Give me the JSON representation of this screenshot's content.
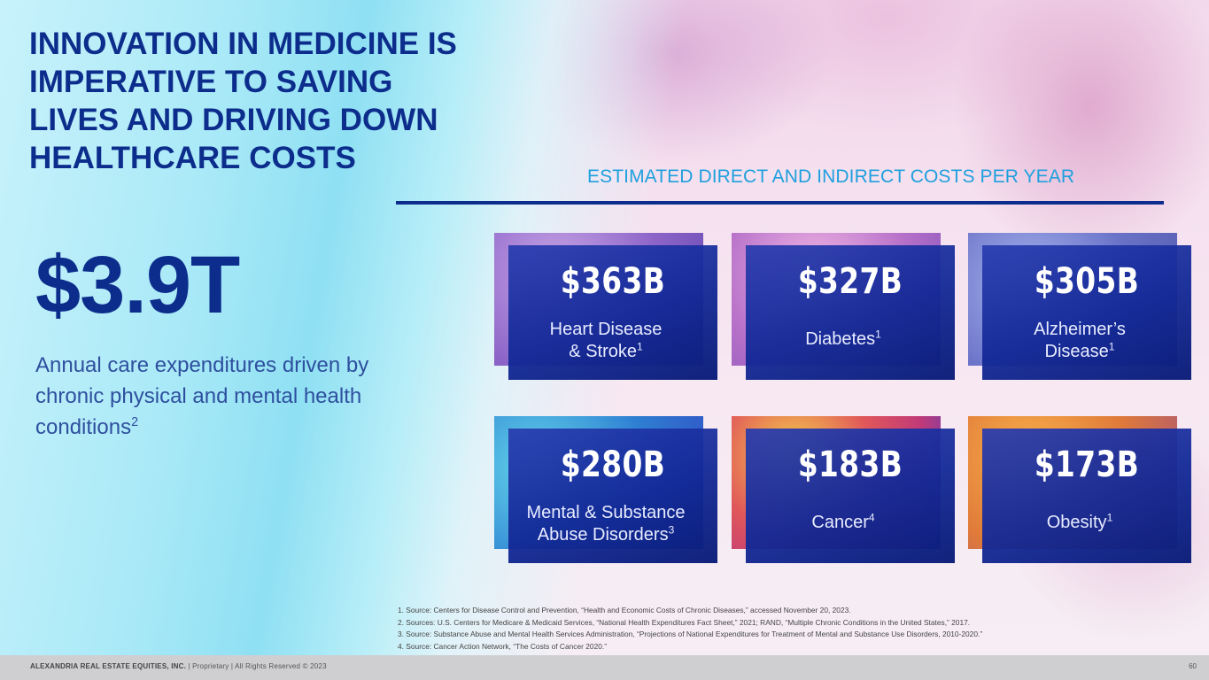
{
  "headline": "INNOVATION IN MEDICINE IS IMPERATIVE TO SAVING LIVES AND DRIVING DOWN HEALTHCARE COSTS",
  "section_title": "ESTIMATED DIRECT AND INDIRECT COSTS PER YEAR",
  "total": {
    "value": "$3.9T",
    "description": "Annual care expenditures driven by chronic physical and mental health conditions",
    "footnote": "2"
  },
  "cards": [
    {
      "value": "$363B",
      "label_line1": "Heart Disease",
      "label_line2": "& Stroke",
      "footnote": "1"
    },
    {
      "value": "$327B",
      "label_line1": "",
      "label_line2": "Diabetes",
      "footnote": "1"
    },
    {
      "value": "$305B",
      "label_line1": "Alzheimer’s",
      "label_line2": "Disease",
      "footnote": "1"
    },
    {
      "value": "$280B",
      "label_line1": "Mental & Substance",
      "label_line2": "Abuse Disorders",
      "footnote": "3"
    },
    {
      "value": "$183B",
      "label_line1": "",
      "label_line2": "Cancer",
      "footnote": "4"
    },
    {
      "value": "$173B",
      "label_line1": "",
      "label_line2": "Obesity",
      "footnote": "1"
    }
  ],
  "footnotes": [
    "1.   Source: Centers for Disease Control and Prevention, “Health and Economic Costs of Chronic Diseases,” accessed November 20, 2023.",
    "2.   Sources: U.S. Centers for Medicare & Medicaid Services, “National Health Expenditures Fact Sheet,” 2021; RAND, “Multiple Chronic Conditions in the United States,” 2017.",
    "3.   Source: Substance Abuse and Mental Health Services Administration, “Projections of National Expenditures for Treatment of Mental and Substance Use Disorders, 2010-2020.”",
    "4.   Source: Cancer Action Network, “The Costs of Cancer 2020.”"
  ],
  "footer": {
    "company": "ALEXANDRIA REAL ESTATE EQUITIES, INC.",
    "rights": " | Proprietary | All Rights Reserved © 2023",
    "page": "60"
  },
  "colors": {
    "navy": "#0c2d8c",
    "cyan_title": "#1fa0dd",
    "card_blue": "#1a2e9e"
  },
  "card_textures": [
    "purple-tissue",
    "pink-cells",
    "blue-neurons",
    "blue-fibers",
    "colorful-cells",
    "orange-tissue"
  ]
}
